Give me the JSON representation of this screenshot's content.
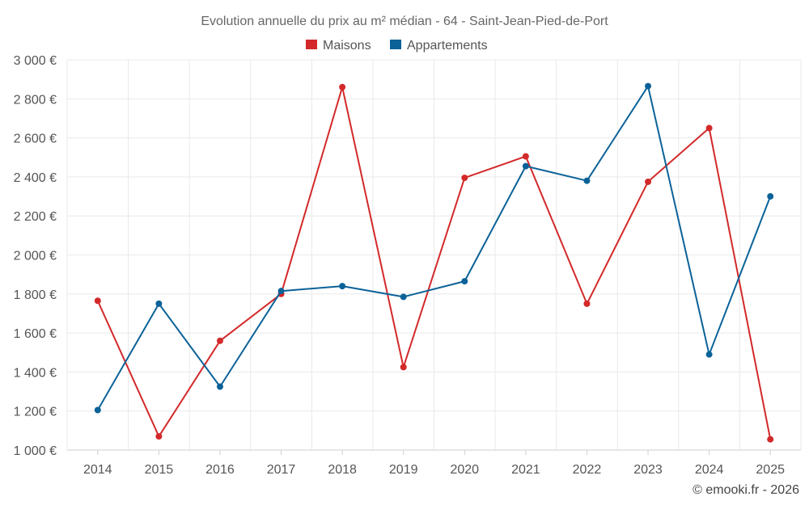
{
  "chart_data": {
    "type": "line",
    "title": "Evolution annuelle du prix au m² médian - 64 - Saint-Jean-Pied-de-Port",
    "categories": [
      "2014",
      "2015",
      "2016",
      "2017",
      "2018",
      "2019",
      "2020",
      "2021",
      "2022",
      "2023",
      "2024",
      "2025"
    ],
    "series": [
      {
        "name": "Maisons",
        "color": "#d3292a",
        "values": [
          1765,
          1070,
          1560,
          1800,
          2860,
          1425,
          2395,
          2505,
          1750,
          2375,
          2650,
          1055
        ]
      },
      {
        "name": "Appartements",
        "color": "#0b6298",
        "values": [
          1205,
          1750,
          1325,
          1815,
          1840,
          1785,
          1865,
          2455,
          2380,
          2865,
          1490,
          2300
        ]
      }
    ],
    "ylim": [
      1000,
      3000
    ],
    "yticks": [
      1000,
      1200,
      1400,
      1600,
      1800,
      2000,
      2200,
      2400,
      2600,
      2800,
      3000
    ],
    "ytick_labels": [
      "1 000 €",
      "1 200 €",
      "1 400 €",
      "1 600 €",
      "1 800 €",
      "2 000 €",
      "2 200 €",
      "2 400 €",
      "2 600 €",
      "2 800 €",
      "3 000 €"
    ],
    "xlabel": "",
    "ylabel": "",
    "grid": true,
    "legend_position": "top-center",
    "credit": "© emooki.fr - 2026"
  }
}
